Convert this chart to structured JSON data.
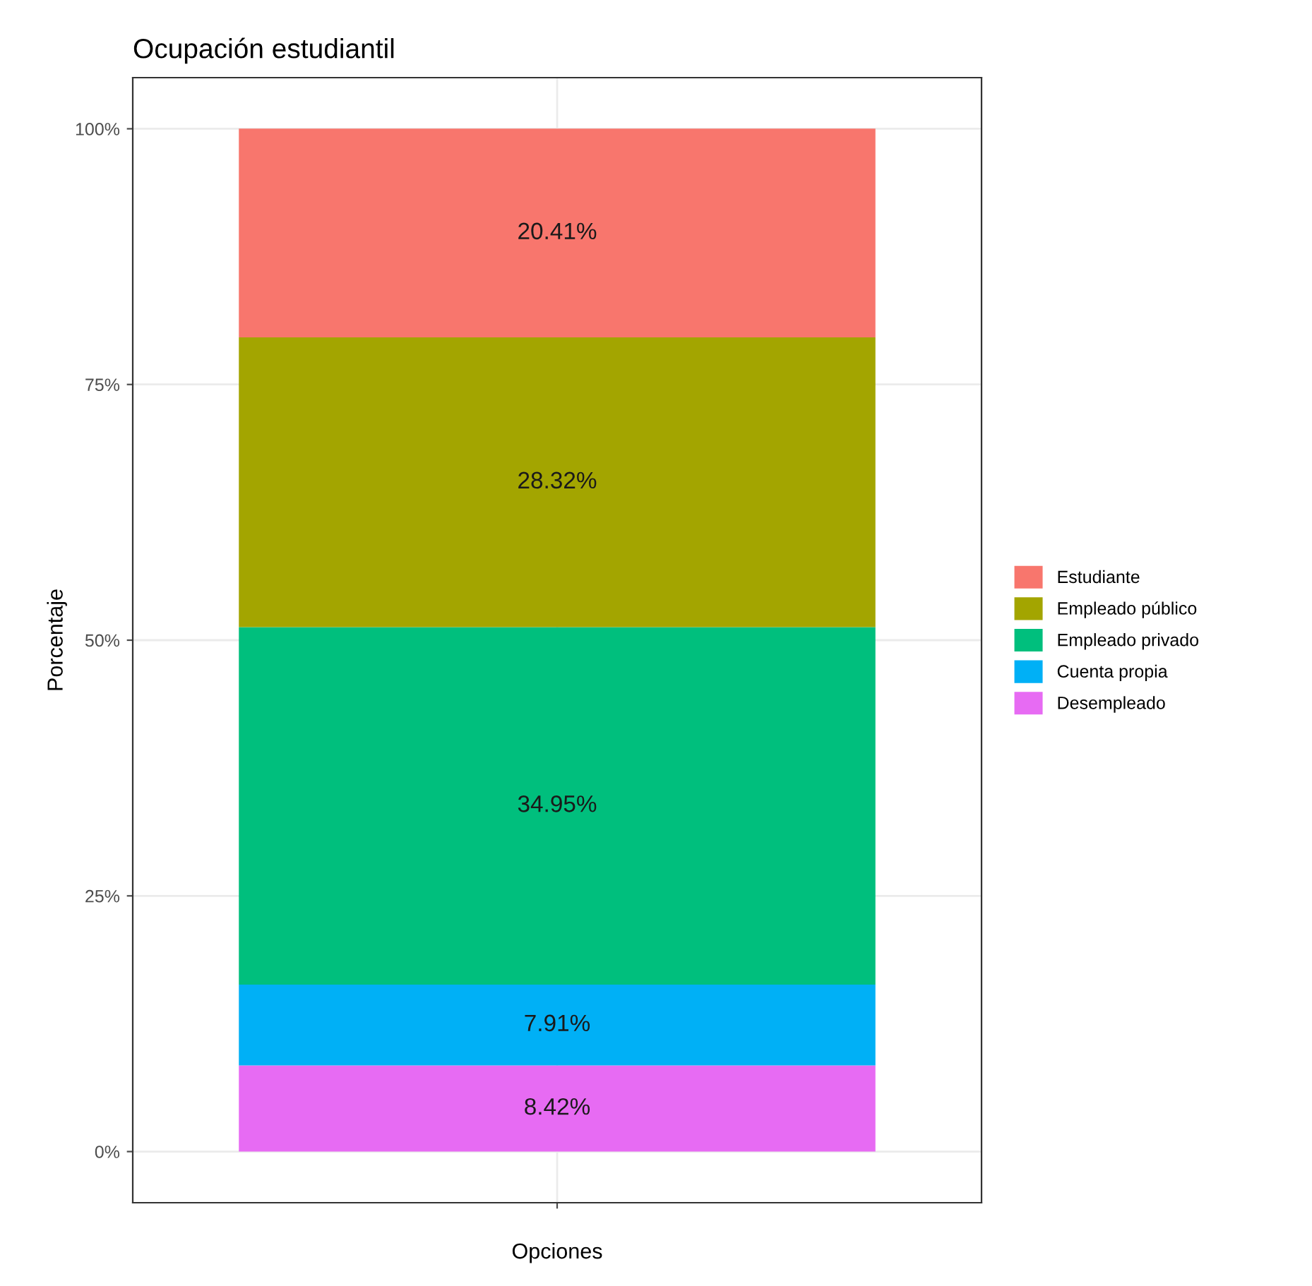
{
  "chart_data": {
    "type": "bar",
    "stacked": true,
    "title": "Ocupación estudiantil",
    "xlabel": "Opciones",
    "ylabel": "Porcentaje",
    "categories": [
      null
    ],
    "series": [
      {
        "name": "Desempleado",
        "color": "#e76bf3",
        "values": [
          8.42
        ],
        "value_labels": [
          "8.42%"
        ]
      },
      {
        "name": "Cuenta propia",
        "color": "#00b0f6",
        "values": [
          7.91
        ],
        "value_labels": [
          "7.91%"
        ]
      },
      {
        "name": "Empleado privado",
        "color": "#00bf7d",
        "values": [
          34.95
        ],
        "value_labels": [
          "34.95%"
        ]
      },
      {
        "name": "Empleado público",
        "color": "#a3a500",
        "values": [
          28.32
        ],
        "value_labels": [
          "28.32%"
        ]
      },
      {
        "name": "Estudiante",
        "color": "#f8766d",
        "values": [
          20.41
        ],
        "value_labels": [
          "20.41%"
        ]
      }
    ],
    "ylim": [
      -5,
      105
    ],
    "yticks": [
      {
        "value": 0,
        "label": "0%"
      },
      {
        "value": 25,
        "label": "25%"
      },
      {
        "value": 50,
        "label": "50%"
      },
      {
        "value": 75,
        "label": "75%"
      },
      {
        "value": 100,
        "label": "100%"
      }
    ],
    "grid": true,
    "legend": "right"
  }
}
